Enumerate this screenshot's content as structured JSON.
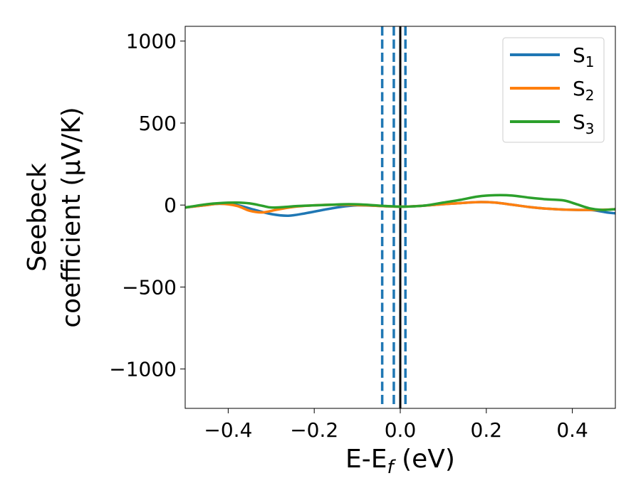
{
  "chart_data": {
    "type": "line",
    "title": "",
    "xlabel_main": "E-E",
    "xlabel_sub": "f",
    "xlabel_unit": " (eV)",
    "ylabel_line1": "Seebeck",
    "ylabel_line2": "coefficient  (μV/K)",
    "xlim": [
      -0.5,
      0.5
    ],
    "ylim": [
      -1240,
      1090
    ],
    "x_ticks": [
      -0.4,
      -0.2,
      0.0,
      0.2,
      0.4
    ],
    "x_tick_labels": [
      "−0.4",
      "−0.2",
      "0.0",
      "0.2",
      "0.4"
    ],
    "y_ticks": [
      1000,
      500,
      0,
      -500,
      -1000
    ],
    "y_tick_labels": [
      "1000",
      "500",
      "0",
      "−500",
      "−1000"
    ],
    "grid": false,
    "legend_position": "top-right",
    "vlines": [
      {
        "x": 0.0,
        "style": "solid",
        "color": "#000000"
      },
      {
        "x": -0.042,
        "style": "dashed",
        "color": "#1f77b4"
      },
      {
        "x": -0.015,
        "style": "dashed",
        "color": "#1f77b4"
      },
      {
        "x": 0.012,
        "style": "dashed",
        "color": "#1f77b4"
      }
    ],
    "series": [
      {
        "name": "S",
        "sub": "1",
        "color": "#1f77b4",
        "points": [
          [
            -0.5,
            -15
          ],
          [
            -0.45,
            0
          ],
          [
            -0.42,
            8
          ],
          [
            -0.38,
            0
          ],
          [
            -0.34,
            -28
          ],
          [
            -0.3,
            -55
          ],
          [
            -0.26,
            -65
          ],
          [
            -0.22,
            -50
          ],
          [
            -0.18,
            -30
          ],
          [
            -0.14,
            -12
          ],
          [
            -0.1,
            -2
          ],
          [
            -0.06,
            -4
          ],
          [
            -0.03,
            -8
          ],
          [
            0.0,
            -10
          ],
          [
            0.02,
            -9
          ],
          [
            0.06,
            -3
          ],
          [
            0.1,
            5
          ],
          [
            0.14,
            12
          ],
          [
            0.18,
            18
          ],
          [
            0.22,
            15
          ],
          [
            0.26,
            2
          ],
          [
            0.3,
            -12
          ],
          [
            0.34,
            -22
          ],
          [
            0.38,
            -28
          ],
          [
            0.42,
            -30
          ],
          [
            0.45,
            -32
          ],
          [
            0.48,
            -45
          ],
          [
            0.5,
            -50
          ]
        ]
      },
      {
        "name": "S",
        "sub": "2",
        "color": "#ff7f0e",
        "points": [
          [
            -0.5,
            -15
          ],
          [
            -0.45,
            0
          ],
          [
            -0.42,
            8
          ],
          [
            -0.38,
            -5
          ],
          [
            -0.35,
            -35
          ],
          [
            -0.32,
            -45
          ],
          [
            -0.29,
            -30
          ],
          [
            -0.25,
            -12
          ],
          [
            -0.2,
            -2
          ],
          [
            -0.15,
            2
          ],
          [
            -0.1,
            0
          ],
          [
            -0.06,
            -4
          ],
          [
            -0.03,
            -8
          ],
          [
            0.0,
            -10
          ],
          [
            0.02,
            -9
          ],
          [
            0.06,
            -3
          ],
          [
            0.1,
            5
          ],
          [
            0.14,
            12
          ],
          [
            0.18,
            18
          ],
          [
            0.22,
            15
          ],
          [
            0.26,
            2
          ],
          [
            0.3,
            -12
          ],
          [
            0.34,
            -22
          ],
          [
            0.38,
            -28
          ],
          [
            0.42,
            -30
          ],
          [
            0.45,
            -30
          ],
          [
            0.48,
            -28
          ],
          [
            0.5,
            -25
          ]
        ]
      },
      {
        "name": "S",
        "sub": "3",
        "color": "#2ca02c",
        "points": [
          [
            -0.5,
            -15
          ],
          [
            -0.45,
            5
          ],
          [
            -0.42,
            12
          ],
          [
            -0.38,
            15
          ],
          [
            -0.35,
            10
          ],
          [
            -0.32,
            -5
          ],
          [
            -0.3,
            -15
          ],
          [
            -0.27,
            -12
          ],
          [
            -0.24,
            -6
          ],
          [
            -0.2,
            -2
          ],
          [
            -0.16,
            2
          ],
          [
            -0.12,
            5
          ],
          [
            -0.08,
            2
          ],
          [
            -0.04,
            -5
          ],
          [
            0.0,
            -10
          ],
          [
            0.03,
            -8
          ],
          [
            0.06,
            -2
          ],
          [
            0.1,
            15
          ],
          [
            0.14,
            32
          ],
          [
            0.18,
            52
          ],
          [
            0.22,
            60
          ],
          [
            0.26,
            58
          ],
          [
            0.3,
            45
          ],
          [
            0.34,
            35
          ],
          [
            0.38,
            28
          ],
          [
            0.41,
            5
          ],
          [
            0.44,
            -20
          ],
          [
            0.47,
            -30
          ],
          [
            0.5,
            -25
          ]
        ]
      }
    ]
  }
}
